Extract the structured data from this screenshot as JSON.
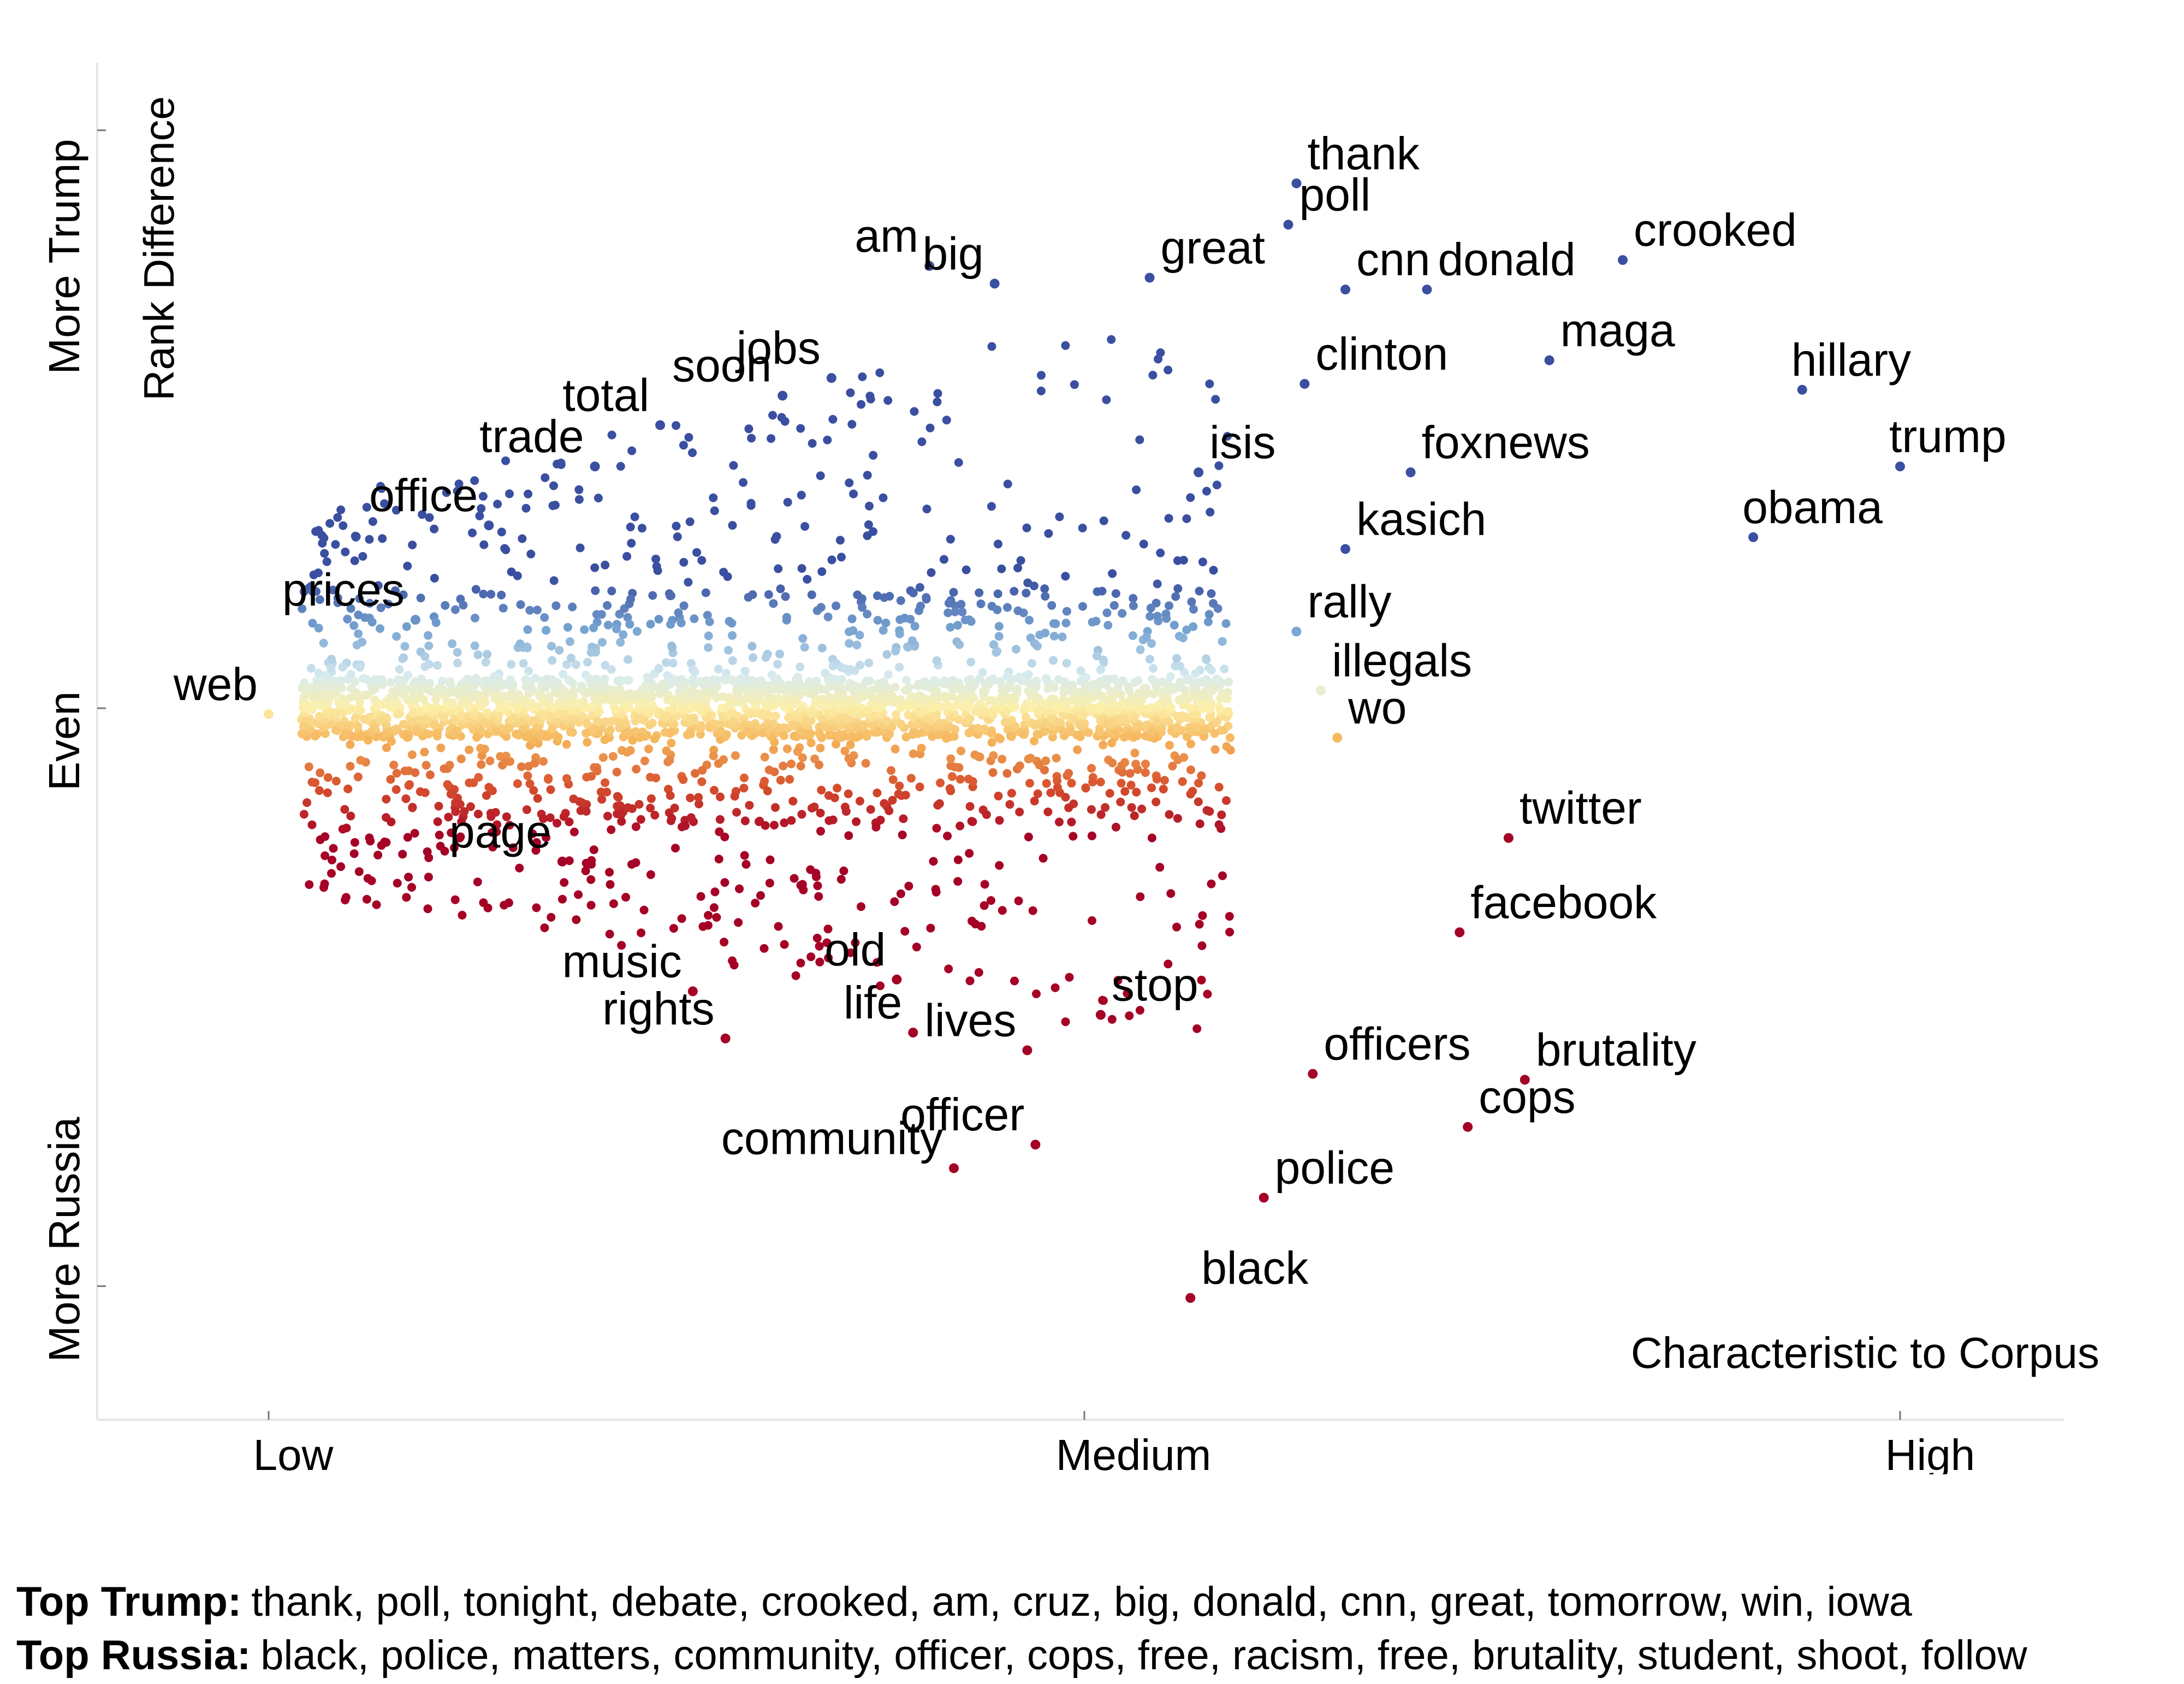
{
  "chart_data": {
    "type": "scatter",
    "xlabel": "Characteristic to Corpus",
    "ylabel": "Rank Difference",
    "x_tick_labels": [
      "Low",
      "Medium",
      "High"
    ],
    "y_tick_labels": [
      "More Trump",
      "Even",
      "More Russia"
    ],
    "xlim": [
      0,
      1
    ],
    "ylim": [
      -1,
      1
    ],
    "color_scale": {
      "trump": "#3a4fa0",
      "even": "#fcefa8",
      "russia": "#a50026"
    },
    "labeled_points": [
      {
        "word": "thank",
        "x": 0.63,
        "y": 0.89
      },
      {
        "word": "poll",
        "x": 0.625,
        "y": 0.82
      },
      {
        "word": "crooked",
        "x": 0.83,
        "y": 0.76
      },
      {
        "word": "am",
        "x": 0.405,
        "y": 0.75
      },
      {
        "word": "big",
        "x": 0.445,
        "y": 0.72
      },
      {
        "word": "great",
        "x": 0.54,
        "y": 0.73
      },
      {
        "word": "cnn",
        "x": 0.66,
        "y": 0.71
      },
      {
        "word": "donald",
        "x": 0.71,
        "y": 0.71
      },
      {
        "word": "jobs",
        "x": 0.345,
        "y": 0.56
      },
      {
        "word": "maga",
        "x": 0.785,
        "y": 0.59
      },
      {
        "word": "hillary",
        "x": 0.94,
        "y": 0.54
      },
      {
        "word": "clinton",
        "x": 0.635,
        "y": 0.55
      },
      {
        "word": "soon",
        "x": 0.315,
        "y": 0.53
      },
      {
        "word": "total",
        "x": 0.24,
        "y": 0.48
      },
      {
        "word": "trade",
        "x": 0.2,
        "y": 0.41
      },
      {
        "word": "isis",
        "x": 0.57,
        "y": 0.4
      },
      {
        "word": "trump",
        "x": 1.0,
        "y": 0.41
      },
      {
        "word": "foxnews",
        "x": 0.7,
        "y": 0.4
      },
      {
        "word": "obama",
        "x": 0.91,
        "y": 0.29
      },
      {
        "word": "kasich",
        "x": 0.66,
        "y": 0.27
      },
      {
        "word": "office",
        "x": 0.135,
        "y": 0.31
      },
      {
        "word": "rally",
        "x": 0.63,
        "y": 0.13
      },
      {
        "word": "prices",
        "x": 0.09,
        "y": 0.15
      },
      {
        "word": "illegals",
        "x": 0.645,
        "y": 0.03
      },
      {
        "word": "web",
        "x": 0.0,
        "y": -0.01
      },
      {
        "word": "wo",
        "x": 0.655,
        "y": -0.05
      },
      {
        "word": "twitter",
        "x": 0.76,
        "y": -0.22
      },
      {
        "word": "page",
        "x": 0.18,
        "y": -0.26
      },
      {
        "word": "facebook",
        "x": 0.73,
        "y": -0.38
      },
      {
        "word": "music",
        "x": 0.26,
        "y": -0.48
      },
      {
        "word": "old",
        "x": 0.385,
        "y": -0.46
      },
      {
        "word": "stop",
        "x": 0.51,
        "y": -0.52
      },
      {
        "word": "rights",
        "x": 0.28,
        "y": -0.56
      },
      {
        "word": "life",
        "x": 0.395,
        "y": -0.55
      },
      {
        "word": "lives",
        "x": 0.465,
        "y": -0.58
      },
      {
        "word": "officers",
        "x": 0.64,
        "y": -0.62
      },
      {
        "word": "brutality",
        "x": 0.77,
        "y": -0.63
      },
      {
        "word": "officer",
        "x": 0.47,
        "y": -0.74
      },
      {
        "word": "cops",
        "x": 0.735,
        "y": -0.71
      },
      {
        "word": "community",
        "x": 0.42,
        "y": -0.78
      },
      {
        "word": "police",
        "x": 0.61,
        "y": -0.83
      },
      {
        "word": "black",
        "x": 0.565,
        "y": -1.0
      }
    ],
    "annotations": [
      {
        "text": "Top Trump:",
        "items": "thank, poll, tonight, debate, crooked, am, cruz, big, donald, cnn, great, tomorrow, win, iowa"
      },
      {
        "text": "Top Russia:",
        "items": "black, police, matters, community, officer, cops, free, racism, free, brutality, student, shoot, follow"
      }
    ]
  }
}
